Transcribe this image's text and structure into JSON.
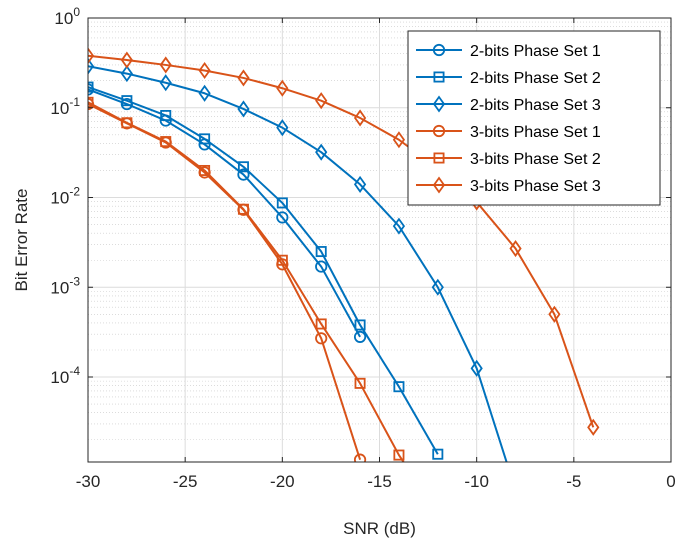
{
  "chart_data": {
    "type": "line",
    "title": "",
    "xlabel": "SNR (dB)",
    "ylabel": "Bit Error Rate",
    "xlim": [
      -30,
      0
    ],
    "ylim": [
      1.13e-05,
      1
    ],
    "yscale": "log",
    "grid": true,
    "minor_grid": true,
    "legend_position": "top-right",
    "x_ticks": [
      -30,
      -25,
      -20,
      -15,
      -10,
      -5,
      0
    ],
    "x_tick_labels": [
      "-30",
      "-25",
      "-20",
      "-15",
      "-10",
      "-5",
      "0"
    ],
    "y_ticks": [
      {
        "value": 1,
        "base": "10",
        "exp": "0"
      },
      {
        "value": 0.1,
        "base": "10",
        "exp": "-1"
      },
      {
        "value": 0.01,
        "base": "10",
        "exp": "-2"
      },
      {
        "value": 0.001,
        "base": "10",
        "exp": "-3"
      },
      {
        "value": 0.0001,
        "base": "10",
        "exp": "-4"
      }
    ],
    "series": [
      {
        "name": "2-bits Phase Set 1",
        "color": "#0072BD",
        "marker": "circle",
        "x": [
          -30,
          -28,
          -26,
          -24,
          -22,
          -20,
          -18,
          -16
        ],
        "y": [
          0.16,
          0.11,
          0.072,
          0.039,
          0.018,
          0.006,
          0.0017,
          0.00028
        ]
      },
      {
        "name": "2-bits Phase Set 2",
        "color": "#0072BD",
        "marker": "square",
        "x": [
          -30,
          -28,
          -26,
          -24,
          -22,
          -20,
          -18,
          -16,
          -14,
          -12
        ],
        "y": [
          0.17,
          0.12,
          0.082,
          0.045,
          0.022,
          0.0087,
          0.0025,
          0.00038,
          7.8e-05,
          1.38e-05
        ]
      },
      {
        "name": "2-bits Phase Set 3",
        "color": "#0072BD",
        "marker": "diamond",
        "x": [
          -30,
          -28,
          -26,
          -24,
          -22,
          -20,
          -18,
          -16,
          -14,
          -12,
          -10,
          -8
        ],
        "y": [
          0.29,
          0.24,
          0.19,
          0.145,
          0.097,
          0.06,
          0.032,
          0.014,
          0.0048,
          0.001,
          0.000125,
          5.5e-06
        ]
      },
      {
        "name": "3-bits Phase Set 1",
        "color": "#D95319",
        "marker": "circle",
        "x": [
          -30,
          -28,
          -26,
          -24,
          -22,
          -20,
          -18,
          -16
        ],
        "y": [
          0.11,
          0.067,
          0.041,
          0.019,
          0.0073,
          0.0018,
          0.00027,
          1.2e-05
        ]
      },
      {
        "name": "3-bits Phase Set 2",
        "color": "#D95319",
        "marker": "square",
        "x": [
          -30,
          -28,
          -26,
          -24,
          -22,
          -20,
          -18,
          -16,
          -14,
          -12
        ],
        "y": [
          0.115,
          0.068,
          0.042,
          0.02,
          0.0074,
          0.002,
          0.00039,
          8.5e-05,
          1.35e-05,
          3e-06
        ]
      },
      {
        "name": "3-bits Phase Set 3",
        "color": "#D95319",
        "marker": "diamond",
        "x": [
          -30,
          -28,
          -26,
          -24,
          -22,
          -20,
          -18,
          -16,
          -14,
          -12,
          -10,
          -8,
          -6,
          -4
        ],
        "y": [
          0.38,
          0.34,
          0.3,
          0.26,
          0.215,
          0.165,
          0.12,
          0.077,
          0.044,
          0.021,
          0.0089,
          0.0027,
          0.0005,
          2.75e-05
        ]
      }
    ]
  }
}
